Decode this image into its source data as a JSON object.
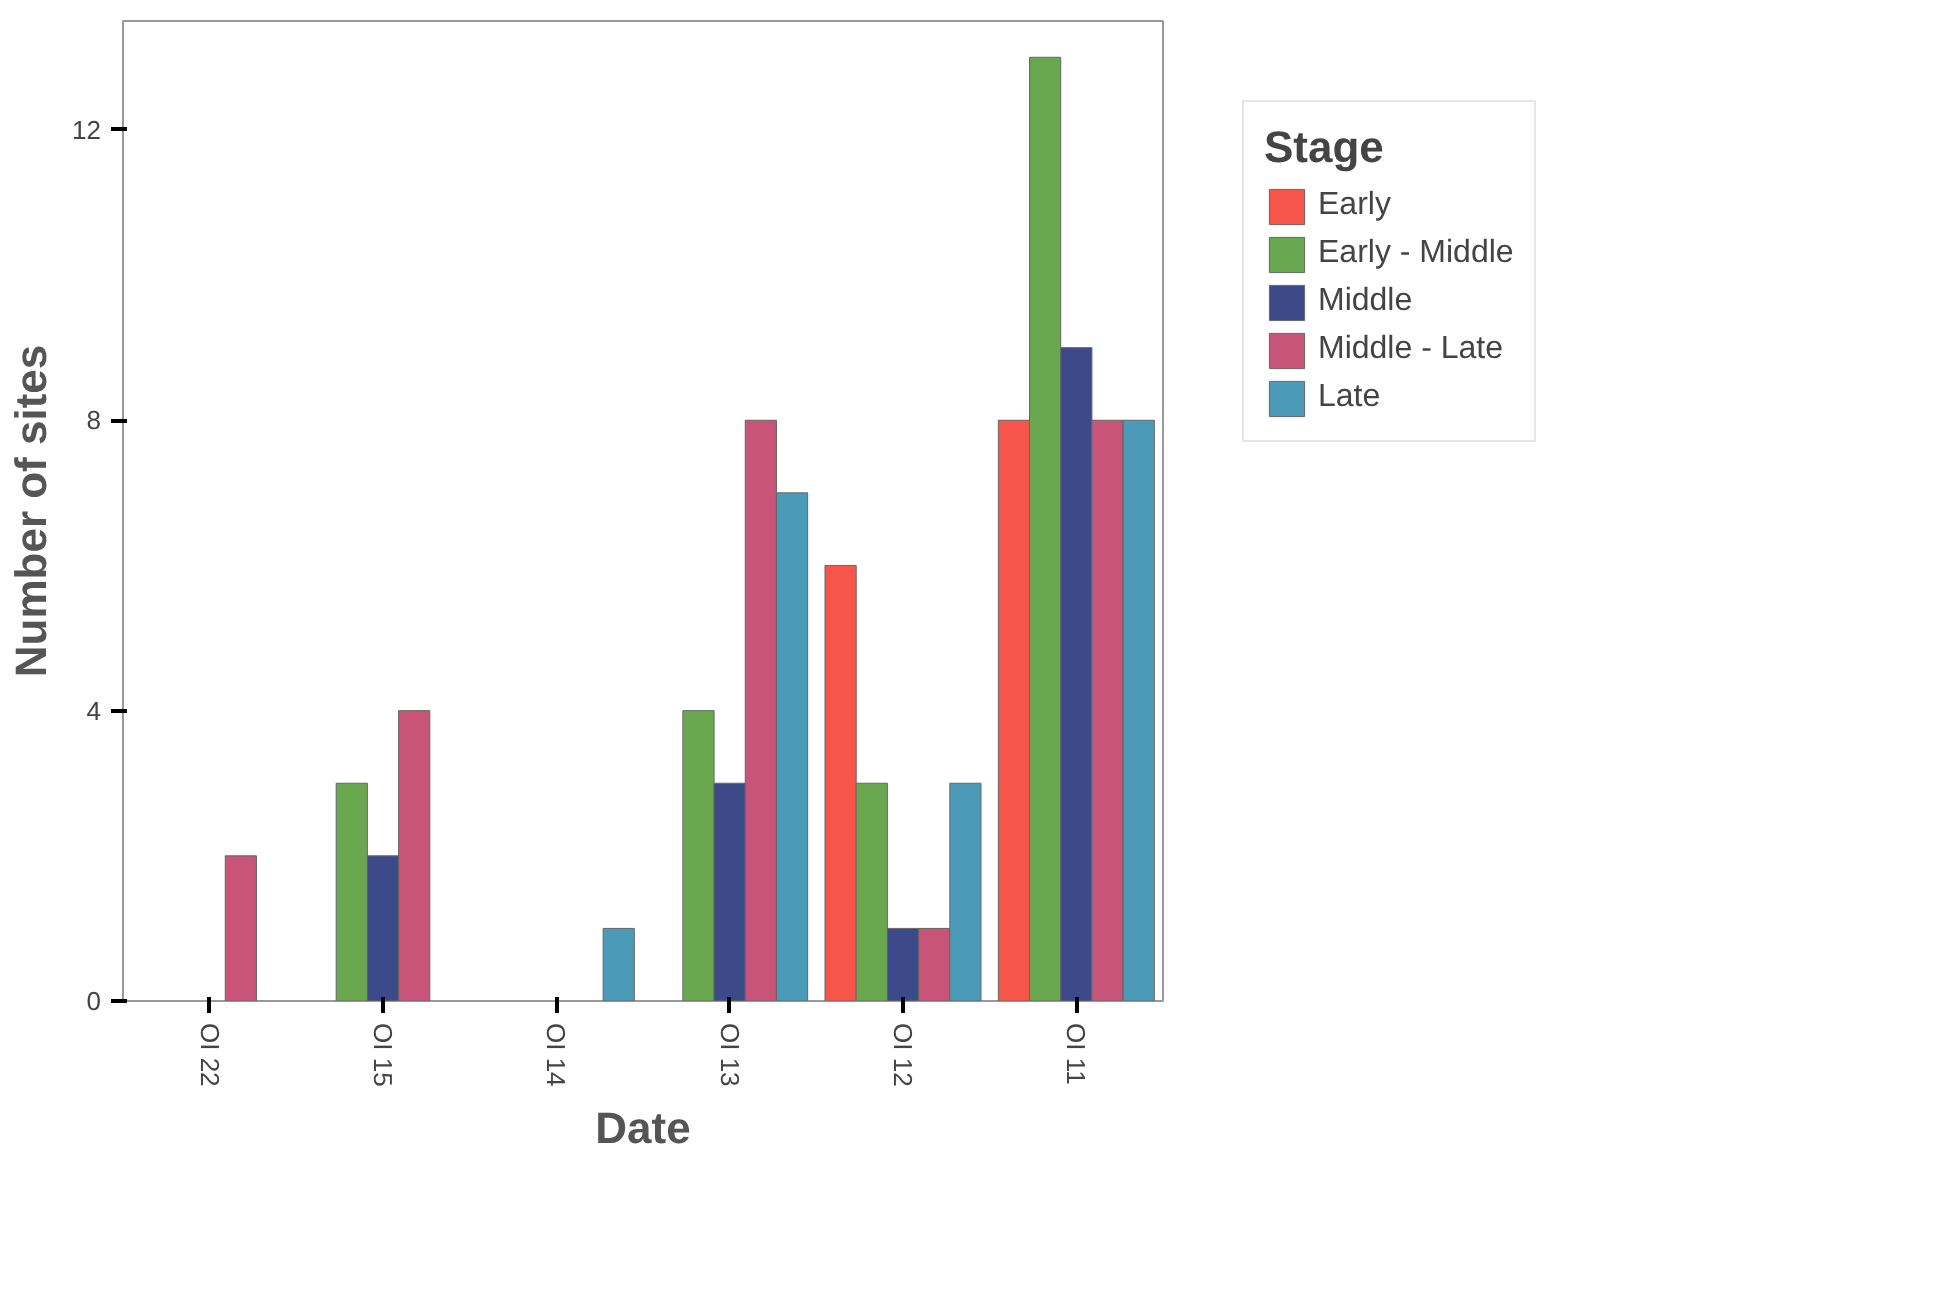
{
  "chart_data": {
    "type": "bar",
    "xlabel": "Date",
    "ylabel": "Number of sites",
    "legend_title": "Stage",
    "legend": "right",
    "categories": [
      "OI 22",
      "OI 15",
      "OI 14",
      "OI 13",
      "OI 12",
      "OI 11"
    ],
    "series": [
      {
        "name": "Early",
        "color": "#f8554a",
        "values": [
          null,
          null,
          null,
          null,
          6,
          8
        ]
      },
      {
        "name": "Early - Middle",
        "color": "#6aa84f",
        "values": [
          null,
          3,
          null,
          4,
          3,
          13
        ]
      },
      {
        "name": "Middle",
        "color": "#3d4a8a",
        "values": [
          null,
          2,
          null,
          3,
          1,
          9
        ]
      },
      {
        "name": "Middle - Late",
        "color": "#c8547a",
        "values": [
          2,
          4,
          null,
          8,
          1,
          8
        ]
      },
      {
        "name": "Late",
        "color": "#4a9ab8",
        "values": [
          null,
          null,
          1,
          7,
          3,
          8
        ]
      }
    ],
    "ylim": [
      0,
      13.5
    ],
    "yticks": [
      0,
      4,
      8,
      12
    ],
    "grid": false
  }
}
